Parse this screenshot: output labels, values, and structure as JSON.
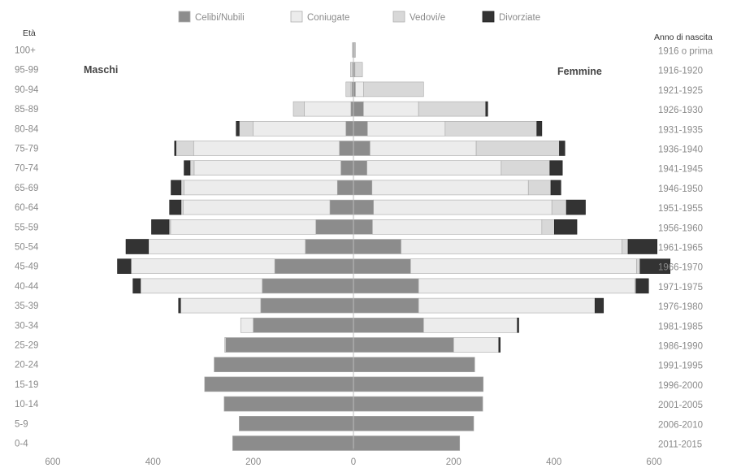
{
  "chart_data": {
    "type": "bar",
    "orientation": "horizontal",
    "stacked": true,
    "diverging": true,
    "left_label": "Maschi",
    "right_label": "Femmine",
    "ylabel": "Età",
    "y2label": "Anno di nascita",
    "xlim": [
      -600,
      600
    ],
    "x_ticks": [
      -600,
      -400,
      -200,
      0,
      200,
      400,
      600
    ],
    "x_tick_labels": [
      "600",
      "400",
      "200",
      "0",
      "200",
      "400",
      "600"
    ],
    "legend_position": "top",
    "categories": [
      "100+",
      "95-99",
      "90-94",
      "85-89",
      "80-84",
      "75-79",
      "70-74",
      "65-69",
      "60-64",
      "55-59",
      "50-54",
      "45-49",
      "40-44",
      "35-39",
      "30-34",
      "25-29",
      "20-24",
      "15-19",
      "10-14",
      "5-9",
      "0-4"
    ],
    "birth_years": [
      "1916 o prima",
      "1916-1920",
      "1921-1925",
      "1926-1930",
      "1931-1935",
      "1936-1940",
      "1941-1945",
      "1946-1950",
      "1951-1955",
      "1956-1960",
      "1961-1965",
      "1966-1970",
      "1971-1975",
      "1976-1980",
      "1981-1985",
      "1986-1990",
      "1991-1995",
      "1996-2000",
      "2001-2005",
      "2006-2010",
      "2011-2015"
    ],
    "series": [
      {
        "name": "Celibi/Nubili",
        "color": "#8c8c8c",
        "male": [
          0,
          1,
          3,
          5,
          15,
          28,
          25,
          32,
          47,
          75,
          96,
          157,
          182,
          185,
          200,
          255,
          278,
          297,
          258,
          228,
          241
        ],
        "female": [
          1,
          2,
          4,
          20,
          28,
          33,
          27,
          37,
          40,
          38,
          95,
          114,
          130,
          130,
          140,
          200,
          242,
          259,
          258,
          240,
          212
        ]
      },
      {
        "name": "Coniugate",
        "color": "#ececec",
        "male": [
          1,
          1,
          2,
          93,
          185,
          291,
          293,
          306,
          293,
          290,
          313,
          287,
          243,
          160,
          25,
          2,
          0,
          0,
          0,
          0,
          0
        ],
        "female": [
          1,
          1,
          16,
          110,
          155,
          212,
          268,
          312,
          356,
          338,
          441,
          451,
          432,
          352,
          187,
          90,
          0,
          0,
          0,
          0,
          0
        ]
      },
      {
        "name": "Vedovi/e",
        "color": "#d8d8d8",
        "male": [
          1,
          4,
          10,
          22,
          28,
          35,
          8,
          6,
          4,
          3,
          0,
          0,
          0,
          0,
          0,
          0,
          0,
          0,
          0,
          0,
          0
        ],
        "female": [
          2,
          15,
          120,
          134,
          183,
          166,
          97,
          45,
          29,
          25,
          12,
          7,
          2,
          0,
          0,
          0,
          0,
          0,
          0,
          0,
          0
        ]
      },
      {
        "name": "Divorziate",
        "color": "#333333",
        "male": [
          0,
          0,
          0,
          0,
          6,
          3,
          12,
          20,
          23,
          35,
          45,
          27,
          15,
          4,
          0,
          0,
          0,
          0,
          0,
          0,
          0
        ],
        "female": [
          0,
          0,
          0,
          4,
          10,
          11,
          25,
          20,
          38,
          45,
          58,
          60,
          25,
          17,
          3,
          3,
          0,
          0,
          0,
          0,
          0
        ]
      }
    ]
  }
}
